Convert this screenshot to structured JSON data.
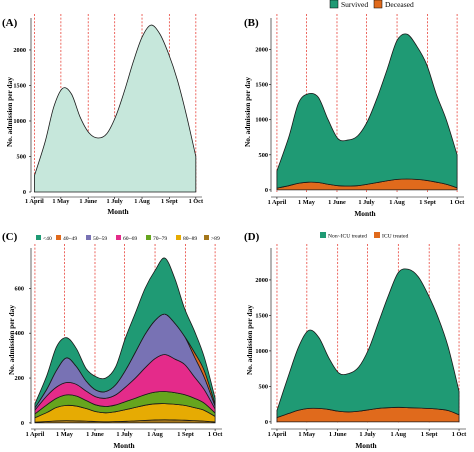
{
  "colors": {
    "panel_a_fill": "#c6e7db",
    "survived": "#1f9a74",
    "deceased": "#e06a1c",
    "non_icu": "#1f9a74",
    "icu": "#e06a1c",
    "age_lt40": "#1f9a74",
    "age_40_49": "#e06a1c",
    "age_50_59": "#7872b4",
    "age_60_69": "#e42b8a",
    "age_70_79": "#66a51e",
    "age_80_89": "#e6ab03",
    "age_gt89": "#a4761a",
    "vline": "#e8433a"
  },
  "chart_data": [
    {
      "panel": "(A)",
      "type": "area",
      "xlabel": "Month",
      "ylabel": "No. admission per day",
      "x_ticks": [
        "1 April",
        "1 May",
        "1 June",
        "1 July",
        "1 Aug",
        "1 Sept",
        "1 Oct"
      ],
      "y_ticks": [
        "0",
        "500",
        "1000",
        "1500",
        "2000"
      ],
      "ylim": [
        0,
        2450
      ],
      "xlim": [
        -5,
        190
      ],
      "grid": "monthly dashed vertical lines",
      "x": [
        0,
        12,
        22,
        32,
        42,
        52,
        62,
        72,
        82,
        92,
        102,
        112,
        122,
        132,
        142,
        152,
        162,
        172,
        183
      ],
      "series": [
        {
          "values": [
            230,
            700,
            1200,
            1460,
            1380,
            1050,
            830,
            760,
            820,
            1060,
            1420,
            1830,
            2180,
            2350,
            2230,
            1950,
            1580,
            1100,
            500
          ]
        }
      ]
    },
    {
      "panel": "(B)",
      "type": "area",
      "xlabel": "Month",
      "ylabel": "No. admission per day",
      "x_ticks": [
        "1 April",
        "1 May",
        "1 June",
        "1 July",
        "1 Aug",
        "1 Sept",
        "1 Oct"
      ],
      "y_ticks": [
        "0",
        "500",
        "1000",
        "1500",
        "2000"
      ],
      "ylim": [
        -30,
        2450
      ],
      "xlim": [
        -5,
        190
      ],
      "legend": "top-right",
      "stacking": "stacked",
      "x": [
        0,
        12,
        22,
        32,
        42,
        52,
        62,
        72,
        82,
        92,
        102,
        112,
        122,
        132,
        142,
        152,
        162,
        172,
        183
      ],
      "series": [
        {
          "name": "Deceased",
          "values": [
            25,
            60,
            95,
            110,
            105,
            80,
            60,
            55,
            60,
            80,
            105,
            130,
            150,
            155,
            150,
            135,
            110,
            80,
            30
          ]
        },
        {
          "name": "Survived",
          "values": [
            245,
            690,
            1145,
            1260,
            1215,
            920,
            670,
            655,
            710,
            900,
            1215,
            1590,
            1980,
            2065,
            1900,
            1655,
            1250,
            920,
            470
          ]
        }
      ]
    },
    {
      "panel": "(C)",
      "type": "area",
      "xlabel": "Month",
      "ylabel": "No. admission per day",
      "x_ticks": [
        "1 April",
        "1 May",
        "1 June",
        "1 July",
        "1 Aug",
        "1 Sept",
        "1 Oct"
      ],
      "y_ticks": [
        "0",
        "200",
        "400",
        "600"
      ],
      "ylim": [
        -5,
        780
      ],
      "xlim": [
        -5,
        190
      ],
      "legend": "top-left",
      "stacking": "stacked",
      "x": [
        0,
        12,
        22,
        32,
        42,
        52,
        62,
        72,
        82,
        92,
        102,
        112,
        122,
        132,
        142,
        152,
        162,
        172,
        183
      ],
      "series": [
        {
          "name": ">89",
          "values": [
            3,
            6,
            9,
            10,
            9,
            8,
            6,
            5,
            6,
            7,
            9,
            11,
            13,
            14,
            13,
            12,
            10,
            8,
            4
          ]
        },
        {
          "name": "80~89",
          "values": [
            20,
            40,
            60,
            68,
            66,
            56,
            44,
            40,
            44,
            52,
            60,
            68,
            72,
            72,
            70,
            66,
            58,
            48,
            25
          ]
        },
        {
          "name": "70~79",
          "values": [
            17,
            34,
            41,
            47,
            45,
            36,
            30,
            28,
            30,
            36,
            41,
            47,
            52,
            54,
            52,
            48,
            42,
            32,
            15
          ]
        },
        {
          "name": "60~69",
          "values": [
            17,
            40,
            50,
            55,
            52,
            42,
            36,
            37,
            45,
            65,
            90,
            120,
            150,
            165,
            150,
            135,
            95,
            60,
            18
          ]
        },
        {
          "name": "50~59",
          "values": [
            10,
            30,
            75,
            110,
            80,
            45,
            30,
            30,
            45,
            75,
            115,
            150,
            170,
            180,
            160,
            125,
            90,
            55,
            12
          ]
        },
        {
          "name": "40~49",
          "values": [
            0,
            0,
            0,
            0,
            0,
            0,
            0,
            0,
            0,
            0,
            0,
            0,
            0,
            0,
            0,
            0,
            20,
            30,
            10
          ]
        },
        {
          "name": "<40",
          "values": [
            18,
            60,
            105,
            90,
            80,
            55,
            60,
            60,
            80,
            145,
            175,
            205,
            223,
            250,
            200,
            124,
            95,
            60,
            26
          ]
        }
      ]
    },
    {
      "panel": "(D)",
      "type": "area",
      "xlabel": "Month",
      "ylabel": "No. admission per day",
      "x_ticks": [
        "1 April",
        "1 May",
        "1 June",
        "1 July",
        "1 Aug",
        "1 Sept",
        "1 Oct"
      ],
      "y_ticks": [
        "0",
        "500",
        "1000",
        "1500",
        "2000"
      ],
      "ylim": [
        -30,
        2450
      ],
      "xlim": [
        -5,
        190
      ],
      "legend": "top",
      "stacking": "stacked",
      "x": [
        0,
        12,
        22,
        32,
        42,
        52,
        62,
        72,
        82,
        92,
        102,
        112,
        122,
        132,
        142,
        152,
        162,
        172,
        183
      ],
      "series": [
        {
          "name": "ICU treated",
          "values": [
            60,
            120,
            165,
            190,
            190,
            175,
            150,
            140,
            150,
            170,
            190,
            200,
            205,
            200,
            195,
            190,
            180,
            160,
            100
          ]
        },
        {
          "name": "Non~ICU treated",
          "values": [
            100,
            550,
            900,
            1100,
            1000,
            730,
            540,
            540,
            620,
            850,
            1210,
            1580,
            1900,
            1950,
            1850,
            1600,
            1290,
            900,
            330
          ]
        }
      ]
    }
  ]
}
